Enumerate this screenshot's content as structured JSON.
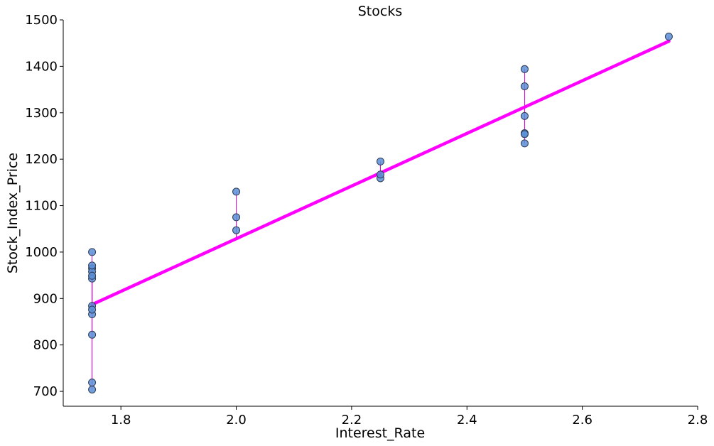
{
  "chart_data": {
    "type": "scatter",
    "title": "Stocks",
    "xlabel": "Interest_Rate",
    "ylabel": "Stock_Index_Price",
    "xlim": [
      1.7,
      2.8
    ],
    "ylim": [
      668,
      1500
    ],
    "xticks": [
      1.8,
      2.0,
      2.2,
      2.4,
      2.6,
      2.8
    ],
    "xtick_labels": [
      "1.8",
      "2.0",
      "2.2",
      "2.4",
      "2.6",
      "2.8"
    ],
    "yticks": [
      700,
      800,
      900,
      1000,
      1100,
      1200,
      1300,
      1400,
      1500
    ],
    "ytick_labels": [
      "700",
      "800",
      "900",
      "1000",
      "1100",
      "1200",
      "1300",
      "1400",
      "1500"
    ],
    "grid": false,
    "points": {
      "x": [
        2.75,
        2.5,
        2.5,
        2.5,
        2.5,
        2.5,
        2.5,
        2.25,
        2.25,
        2.25,
        2.0,
        2.0,
        2.0,
        1.75,
        1.75,
        1.75,
        1.75,
        1.75,
        1.75,
        1.75,
        1.75,
        1.75,
        1.75,
        1.75,
        1.75
      ],
      "y": [
        1464,
        1394,
        1357,
        1293,
        1256,
        1254,
        1234,
        1195,
        1159,
        1167,
        1130,
        1075,
        1047,
        965,
        943,
        958,
        971,
        949,
        884,
        866,
        876,
        822,
        704,
        719,
        1000
      ],
      "color": "#5a8fd6",
      "edge_color": "#2e3a55"
    },
    "regression_line": {
      "x": [
        1.75,
        2.75
      ],
      "y": [
        887,
        1454
      ],
      "color": "#ff00ff"
    },
    "residual_color": "#dd00dd"
  }
}
